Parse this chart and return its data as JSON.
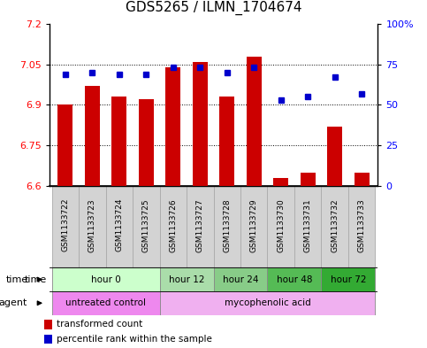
{
  "title": "GDS5265 / ILMN_1704674",
  "samples": [
    "GSM1133722",
    "GSM1133723",
    "GSM1133724",
    "GSM1133725",
    "GSM1133726",
    "GSM1133727",
    "GSM1133728",
    "GSM1133729",
    "GSM1133730",
    "GSM1133731",
    "GSM1133732",
    "GSM1133733"
  ],
  "transformed_count": [
    6.9,
    6.97,
    6.93,
    6.92,
    7.04,
    7.06,
    6.93,
    7.08,
    6.63,
    6.65,
    6.82,
    6.65
  ],
  "percentile_rank": [
    69,
    70,
    69,
    69,
    73,
    73,
    70,
    73,
    53,
    55,
    67,
    57
  ],
  "bar_base": 6.6,
  "ylim_left": [
    6.6,
    7.2
  ],
  "ylim_right": [
    0,
    100
  ],
  "yticks_left": [
    6.6,
    6.75,
    6.9,
    7.05,
    7.2
  ],
  "yticks_right": [
    0,
    25,
    50,
    75,
    100
  ],
  "ytick_labels_left": [
    "6.6",
    "6.75",
    "6.9",
    "7.05",
    "7.2"
  ],
  "ytick_labels_right": [
    "0",
    "25",
    "50",
    "75",
    "100%"
  ],
  "hlines": [
    6.75,
    6.9,
    7.05
  ],
  "bar_color": "#cc0000",
  "dot_color": "#0000cc",
  "time_groups": [
    {
      "label": "hour 0",
      "start": 0,
      "end": 3,
      "color": "#ccffcc"
    },
    {
      "label": "hour 12",
      "start": 4,
      "end": 5,
      "color": "#aaddaa"
    },
    {
      "label": "hour 24",
      "start": 6,
      "end": 7,
      "color": "#88cc88"
    },
    {
      "label": "hour 48",
      "start": 8,
      "end": 9,
      "color": "#55bb55"
    },
    {
      "label": "hour 72",
      "start": 10,
      "end": 11,
      "color": "#33aa33"
    }
  ],
  "agent_groups": [
    {
      "label": "untreated control",
      "start": 0,
      "end": 3,
      "color": "#ee88ee"
    },
    {
      "label": "mycophenolic acid",
      "start": 4,
      "end": 11,
      "color": "#f0b0f0"
    }
  ],
  "legend_bar_label": "transformed count",
  "legend_dot_label": "percentile rank within the sample",
  "bar_color_rgb": "#cc0000",
  "dot_color_rgb": "#0000cc",
  "bar_width": 0.55,
  "title_fontsize": 11,
  "tick_fontsize": 8,
  "label_fontsize": 8,
  "sample_fontsize": 6.5,
  "row_fontsize": 7.5,
  "legend_fontsize": 7.5
}
